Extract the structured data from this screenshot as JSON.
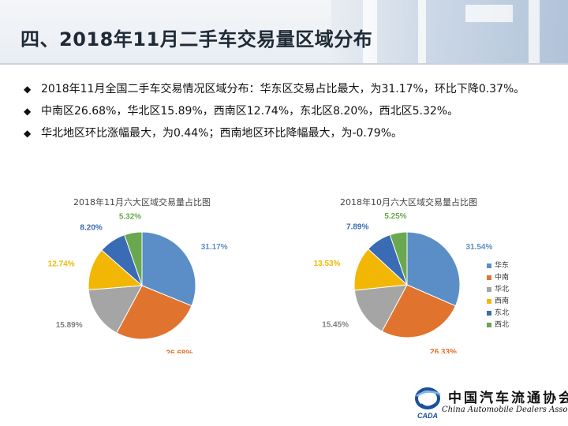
{
  "header": {
    "title": "四、2018年11月二手车交易量区域分布"
  },
  "bullets": [
    "2018年11月全国二手车交易情况区域分布：华东区交易占比最大，为31.17%，环比下降0.37%。",
    "中南区26.68%，华北区15.89%，西南区12.74%，东北区8.20%，西北区5.32%。",
    "华北地区环比涨幅最大，为0.44%；西南地区环比降幅最大，为-0.79%。"
  ],
  "bullet_marker": "◆",
  "chart_data": [
    {
      "type": "pie",
      "title": "2018年11月六大区域交易量占比图",
      "categories": [
        "华东",
        "中南",
        "华北",
        "西南",
        "东北",
        "西北"
      ],
      "values": [
        31.17,
        26.68,
        15.89,
        12.74,
        8.2,
        5.32
      ],
      "labels": [
        "31.17%",
        "26.68%",
        "15.89%",
        "12.74%",
        "8.20%",
        "5.32%"
      ],
      "colors": [
        "#5b8ec7",
        "#e0742e",
        "#a5a5a5",
        "#f2b705",
        "#3a6cb5",
        "#6aa84f"
      ]
    },
    {
      "type": "pie",
      "title": "2018年10月六大区域交易量占比图",
      "categories": [
        "华东",
        "中南",
        "华北",
        "西南",
        "东北",
        "西北"
      ],
      "values": [
        31.54,
        26.33,
        15.45,
        13.53,
        7.89,
        5.25
      ],
      "labels": [
        "31.54%",
        "26.33%",
        "15.45%",
        "13.53%",
        "7.89%",
        "5.25%"
      ],
      "colors": [
        "#5b8ec7",
        "#e0742e",
        "#a5a5a5",
        "#f2b705",
        "#3a6cb5",
        "#6aa84f"
      ],
      "legend": "right"
    }
  ],
  "legend": {
    "items": [
      {
        "label": "华东",
        "color": "#5b8ec7"
      },
      {
        "label": "中南",
        "color": "#e0742e"
      },
      {
        "label": "华北",
        "color": "#a5a5a5"
      },
      {
        "label": "西南",
        "color": "#f2b705"
      },
      {
        "label": "东北",
        "color": "#3a6cb5"
      },
      {
        "label": "西北",
        "color": "#6aa84f"
      }
    ]
  },
  "logo": {
    "name_cn": "中国汽车流通协会",
    "name_en": "China Automobile Dealers Association",
    "mark_text": "CADA"
  }
}
